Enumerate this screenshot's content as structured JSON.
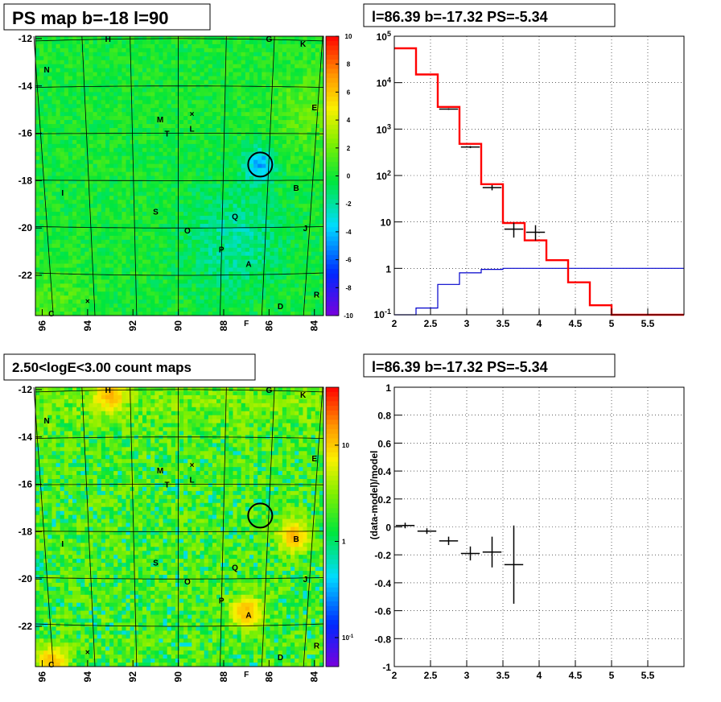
{
  "colors": {
    "observed": "#000000",
    "model": "#ff0000",
    "source_component": "#0000cc",
    "grid": "#000000"
  },
  "chart_data": [
    {
      "type": "heatmap",
      "title": "PS map b=-18 l=90",
      "x_tick_labels": [
        "96",
        "94",
        "92",
        "90",
        "88",
        "86",
        "84"
      ],
      "y_tick_labels": [
        "-12",
        "-14",
        "-16",
        "-18",
        "-20",
        "-22"
      ],
      "xlim": [
        96.3,
        83.6
      ],
      "ylim": [
        -23.7,
        -11.9
      ],
      "colorbar": {
        "scale": "linear",
        "range": [
          -10,
          10
        ],
        "tick_labels": [
          "10",
          "8",
          "6",
          "4",
          "2",
          "0",
          "-2",
          "-4",
          "-6",
          "-8",
          "-10"
        ]
      },
      "circle_marker": {
        "l": 86.39,
        "b": -17.32
      },
      "labels": [
        {
          "text": "H",
          "l": 93.1,
          "b": -12.0
        },
        {
          "text": "G",
          "l": 86.0,
          "b": -12.0
        },
        {
          "text": "K",
          "l": 84.5,
          "b": -12.2
        },
        {
          "text": "N",
          "l": 95.8,
          "b": -13.3
        },
        {
          "text": "E",
          "l": 84.0,
          "b": -14.9
        },
        {
          "text": "M",
          "l": 90.8,
          "b": -15.4
        },
        {
          "text": "L",
          "l": 89.4,
          "b": -15.8
        },
        {
          "text": "T",
          "l": 90.5,
          "b": -16.0
        },
        {
          "text": "B",
          "l": 84.8,
          "b": -18.3
        },
        {
          "text": "I",
          "l": 95.1,
          "b": -18.5
        },
        {
          "text": "S",
          "l": 91.0,
          "b": -19.3
        },
        {
          "text": "Q",
          "l": 87.5,
          "b": -19.5
        },
        {
          "text": "O",
          "l": 89.6,
          "b": -20.1
        },
        {
          "text": "J",
          "l": 84.4,
          "b": -20.0
        },
        {
          "text": "P",
          "l": 88.1,
          "b": -20.9
        },
        {
          "text": "A",
          "l": 86.9,
          "b": -21.5
        },
        {
          "text": "R",
          "l": 83.9,
          "b": -22.8
        },
        {
          "text": "D",
          "l": 85.5,
          "b": -23.3
        },
        {
          "text": "C",
          "l": 95.6,
          "b": -23.6
        },
        {
          "text": "F",
          "l": 87.0,
          "b": -24.0
        }
      ]
    },
    {
      "type": "line",
      "title": "l=86.39 b=-17.32 PS=-5.34",
      "y_scale": "log",
      "xlim": [
        2,
        6
      ],
      "ylim": [
        0.1,
        100000
      ],
      "x_tick_labels": [
        "2",
        "2.5",
        "3",
        "3.5",
        "4",
        "4.5",
        "5",
        "5.5"
      ],
      "y_tick_labels": [
        "10^5",
        "10^4",
        "10^3",
        "10^2",
        "10",
        "1",
        "10^-1"
      ],
      "series": [
        {
          "style": "step",
          "color": "#ff0000",
          "bin_edges": [
            2.0,
            2.3,
            2.6,
            2.9,
            3.2,
            3.5,
            3.8,
            4.1,
            4.4,
            4.7,
            5.0,
            5.3,
            5.6,
            5.9,
            6.0
          ],
          "values": [
            55000,
            15000,
            3000,
            480,
            65,
            9.5,
            4.0,
            1.5,
            0.5,
            0.16,
            0.1,
            0.1,
            0.1,
            0.1
          ]
        },
        {
          "style": "step",
          "color": "#0000cc",
          "bin_edges": [
            2.0,
            2.3,
            2.6,
            2.9,
            3.2,
            3.5,
            3.8,
            4.1,
            4.4,
            4.7,
            5.0,
            5.3,
            5.6,
            5.9,
            6.0
          ],
          "values": [
            0.1,
            0.14,
            0.45,
            0.8,
            0.95,
            1.0,
            1.0,
            1.0,
            1.0,
            1.0,
            1.0,
            1.0,
            1.0,
            1.0
          ]
        },
        {
          "style": "errorbar",
          "color": "#000000",
          "points": [
            {
              "x": 2.75,
              "y": 2700,
              "xerr": 0.13,
              "ylo": 2600,
              "yhi": 2800
            },
            {
              "x": 3.05,
              "y": 410,
              "xerr": 0.13,
              "ylo": 390,
              "yhi": 430
            },
            {
              "x": 3.35,
              "y": 55,
              "xerr": 0.13,
              "ylo": 48,
              "yhi": 62
            },
            {
              "x": 3.65,
              "y": 7,
              "xerr": 0.13,
              "ylo": 4.6,
              "yhi": 9.6
            },
            {
              "x": 3.95,
              "y": 6,
              "xerr": 0.13,
              "ylo": 4.0,
              "yhi": 8.5
            }
          ]
        }
      ]
    },
    {
      "type": "heatmap",
      "title": "2.50<logE<3.00 count maps",
      "x_tick_labels": [
        "96",
        "94",
        "92",
        "90",
        "88",
        "86",
        "84"
      ],
      "y_tick_labels": [
        "-12",
        "-14",
        "-16",
        "-18",
        "-20",
        "-22"
      ],
      "xlim": [
        96.3,
        83.6
      ],
      "ylim": [
        -23.7,
        -11.9
      ],
      "colorbar": {
        "scale": "log",
        "range": [
          0.05,
          40
        ],
        "tick_labels": [
          "10",
          "1",
          "10^-1"
        ]
      },
      "circle_marker": {
        "l": 86.39,
        "b": -17.32
      },
      "hotspots": [
        {
          "label": "A",
          "l": 87.0,
          "b": -21.4
        },
        {
          "label": "B",
          "l": 84.9,
          "b": -18.2
        },
        {
          "label": "H",
          "l": 93.0,
          "b": -12.2
        },
        {
          "label": "C",
          "l": 95.6,
          "b": -23.5
        }
      ]
    },
    {
      "type": "scatter",
      "title": "l=86.39 b=-17.32 PS=-5.34",
      "ylabel": "(data-model)/model",
      "xlim": [
        2,
        6
      ],
      "ylim": [
        -1,
        1
      ],
      "x_tick_labels": [
        "2",
        "2.5",
        "3",
        "3.5",
        "4",
        "4.5",
        "5",
        "5.5"
      ],
      "y_tick_labels": [
        "1",
        "0.8",
        "0.6",
        "0.4",
        "0.2",
        "0",
        "-0.2",
        "-0.4",
        "-0.6",
        "-0.8",
        "-1"
      ],
      "points": [
        {
          "x": 2.15,
          "y": 0.01,
          "xerr": 0.13,
          "yerr": 0.02
        },
        {
          "x": 2.45,
          "y": -0.03,
          "xerr": 0.13,
          "yerr": 0.02
        },
        {
          "x": 2.75,
          "y": -0.1,
          "xerr": 0.13,
          "yerr": 0.03
        },
        {
          "x": 3.05,
          "y": -0.19,
          "xerr": 0.13,
          "yerr": 0.05
        },
        {
          "x": 3.35,
          "y": -0.18,
          "xerr": 0.13,
          "yerr": 0.11
        },
        {
          "x": 3.65,
          "y": -0.27,
          "xerr": 0.13,
          "yerr": 0.28
        }
      ]
    }
  ]
}
